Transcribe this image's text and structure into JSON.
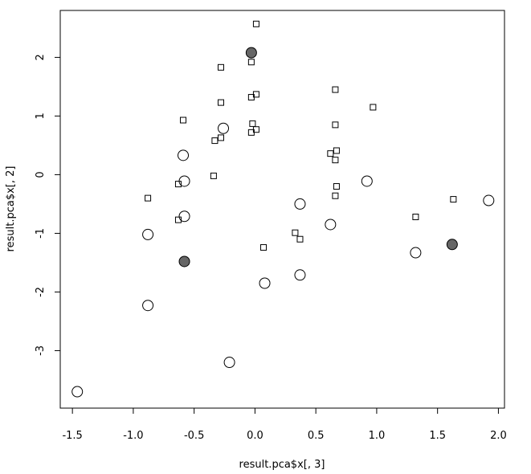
{
  "chart_data": {
    "type": "scatter",
    "title": "",
    "xlabel": "result.pca$x[, 3]",
    "ylabel": "result.pca$x[, 2]",
    "xlim": [
      -1.6,
      2.05
    ],
    "ylim": [
      -3.98,
      2.8
    ],
    "x_ticks": [
      -1.5,
      -1.0,
      -0.5,
      0.0,
      0.5,
      1.0,
      1.5,
      2.0
    ],
    "x_tick_labels": [
      "-1.5",
      "-1.0",
      "-0.5",
      "0.0",
      "0.5",
      "1.0",
      "1.5",
      "2.0"
    ],
    "y_ticks": [
      -3,
      -2,
      -1,
      0,
      1,
      2
    ],
    "y_tick_labels": [
      "-3",
      "-2",
      "-1",
      "0",
      "1",
      "2"
    ],
    "grid": false,
    "legend": "none",
    "series": [
      {
        "marker": "open-square",
        "color": "#000000",
        "points": [
          [
            0.01,
            2.57
          ],
          [
            -0.28,
            1.83
          ],
          [
            -0.03,
            1.92
          ],
          [
            -0.28,
            1.23
          ],
          [
            0.01,
            1.37
          ],
          [
            -0.03,
            1.32
          ],
          [
            0.66,
            1.45
          ],
          [
            0.97,
            1.15
          ],
          [
            -0.59,
            0.93
          ],
          [
            -0.02,
            0.87
          ],
          [
            0.01,
            0.77
          ],
          [
            -0.03,
            0.72
          ],
          [
            0.66,
            0.85
          ],
          [
            -0.28,
            0.63
          ],
          [
            -0.33,
            0.58
          ],
          [
            0.62,
            0.36
          ],
          [
            0.67,
            0.41
          ],
          [
            0.66,
            0.25
          ],
          [
            -0.34,
            -0.02
          ],
          [
            -0.63,
            -0.16
          ],
          [
            -0.88,
            -0.4
          ],
          [
            0.67,
            -0.2
          ],
          [
            0.66,
            -0.36
          ],
          [
            1.63,
            -0.42
          ],
          [
            -0.63,
            -0.77
          ],
          [
            1.32,
            -0.72
          ],
          [
            0.33,
            -0.99
          ],
          [
            0.37,
            -1.1
          ],
          [
            0.07,
            -1.24
          ]
        ]
      },
      {
        "marker": "open-circle",
        "color": "#000000",
        "points": [
          [
            -0.26,
            0.79
          ],
          [
            -0.59,
            0.33
          ],
          [
            -0.58,
            -0.11
          ],
          [
            0.92,
            -0.11
          ],
          [
            1.92,
            -0.44
          ],
          [
            0.37,
            -0.5
          ],
          [
            -0.58,
            -0.71
          ],
          [
            0.62,
            -0.85
          ],
          [
            -0.88,
            -1.02
          ],
          [
            1.32,
            -1.33
          ],
          [
            0.37,
            -1.71
          ],
          [
            0.08,
            -1.85
          ],
          [
            -0.88,
            -2.23
          ],
          [
            -0.21,
            -3.2
          ],
          [
            -1.46,
            -3.7
          ]
        ]
      },
      {
        "marker": "filled-circle",
        "color": "#666666",
        "points": [
          [
            -0.03,
            2.08
          ],
          [
            1.62,
            -1.19
          ],
          [
            -0.58,
            -1.48
          ]
        ]
      }
    ]
  }
}
